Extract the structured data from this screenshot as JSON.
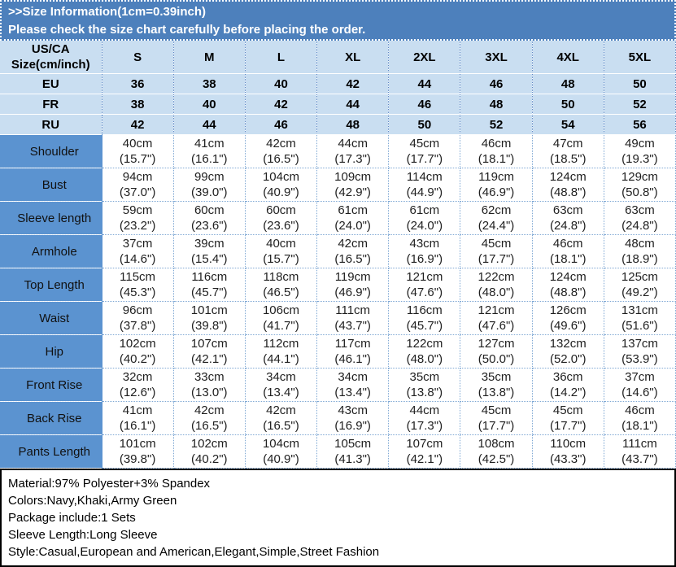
{
  "banner": {
    "title": ">>Size Information(1cm=0.39inch)",
    "subtitle": "Please check the size chart carefully before placing the order."
  },
  "colors": {
    "banner_blue": "#4d80bc",
    "light_blue_cell": "#c9def1",
    "label_column_blue": "#5b93d0",
    "dotted_border_blue": "#7fa8d4",
    "text_black": "#000000",
    "banner_text_white": "#ffffff"
  },
  "table": {
    "corner_header": "US/CA\nSize(cm/inch)",
    "size_headers": [
      "S",
      "M",
      "L",
      "XL",
      "2XL",
      "3XL",
      "4XL",
      "5XL"
    ],
    "conversion_rows": [
      {
        "label": "EU",
        "values": [
          "36",
          "38",
          "40",
          "42",
          "44",
          "46",
          "48",
          "50"
        ]
      },
      {
        "label": "FR",
        "values": [
          "38",
          "40",
          "42",
          "44",
          "46",
          "48",
          "50",
          "52"
        ]
      },
      {
        "label": "RU",
        "values": [
          "42",
          "44",
          "46",
          "48",
          "50",
          "52",
          "54",
          "56"
        ]
      }
    ],
    "measurement_rows": [
      {
        "label": "Shoulder",
        "cells": [
          "40cm\n(15.7\")",
          "41cm\n(16.1\")",
          "42cm\n(16.5\")",
          "44cm\n(17.3\")",
          "45cm\n(17.7\")",
          "46cm\n(18.1\")",
          "47cm\n(18.5\")",
          "49cm\n(19.3\")"
        ]
      },
      {
        "label": "Bust",
        "cells": [
          "94cm\n(37.0\")",
          "99cm\n(39.0\")",
          "104cm\n(40.9\")",
          "109cm\n(42.9\")",
          "114cm\n(44.9\")",
          "119cm\n(46.9\")",
          "124cm\n(48.8\")",
          "129cm\n(50.8\")"
        ]
      },
      {
        "label": "Sleeve length",
        "cells": [
          "59cm\n(23.2\")",
          "60cm\n(23.6\")",
          "60cm\n(23.6\")",
          "61cm\n(24.0\")",
          "61cm\n(24.0\")",
          "62cm\n(24.4\")",
          "63cm\n(24.8\")",
          "63cm\n(24.8\")"
        ]
      },
      {
        "label": "Armhole",
        "cells": [
          "37cm\n(14.6\")",
          "39cm\n(15.4\")",
          "40cm\n(15.7\")",
          "42cm\n(16.5\")",
          "43cm\n(16.9\")",
          "45cm\n(17.7\")",
          "46cm\n(18.1\")",
          "48cm\n(18.9\")"
        ]
      },
      {
        "label": "Top Length",
        "cells": [
          "115cm\n(45.3\")",
          "116cm\n(45.7\")",
          "118cm\n(46.5\")",
          "119cm\n(46.9\")",
          "121cm\n(47.6\")",
          "122cm\n(48.0\")",
          "124cm\n(48.8\")",
          "125cm\n(49.2\")"
        ]
      },
      {
        "label": "Waist",
        "cells": [
          "96cm\n(37.8\")",
          "101cm\n(39.8\")",
          "106cm\n(41.7\")",
          "111cm\n(43.7\")",
          "116cm\n(45.7\")",
          "121cm\n(47.6\")",
          "126cm\n(49.6\")",
          "131cm\n(51.6\")"
        ]
      },
      {
        "label": "Hip",
        "cells": [
          "102cm\n(40.2\")",
          "107cm\n(42.1\")",
          "112cm\n(44.1\")",
          "117cm\n(46.1\")",
          "122cm\n(48.0\")",
          "127cm\n(50.0\")",
          "132cm\n(52.0\")",
          "137cm\n(53.9\")"
        ]
      },
      {
        "label": "Front Rise",
        "cells": [
          "32cm\n(12.6\")",
          "33cm\n(13.0\")",
          "34cm\n(13.4\")",
          "34cm\n(13.4\")",
          "35cm\n(13.8\")",
          "35cm\n(13.8\")",
          "36cm\n(14.2\")",
          "37cm\n(14.6\")"
        ]
      },
      {
        "label": "Back Rise",
        "cells": [
          "41cm\n(16.1\")",
          "42cm\n(16.5\")",
          "42cm\n(16.5\")",
          "43cm\n(16.9\")",
          "44cm\n(17.3\")",
          "45cm\n(17.7\")",
          "45cm\n(17.7\")",
          "46cm\n(18.1\")"
        ]
      },
      {
        "label": "Pants Length",
        "cells": [
          "101cm\n(39.8\")",
          "102cm\n(40.2\")",
          "104cm\n(40.9\")",
          "105cm\n(41.3\")",
          "107cm\n(42.1\")",
          "108cm\n(42.5\")",
          "110cm\n(43.3\")",
          "111cm\n(43.7\")"
        ]
      }
    ]
  },
  "footer": {
    "lines": [
      "Material:97% Polyester+3% Spandex",
      "Colors:Navy,Khaki,Army Green",
      "Package include:1 Sets",
      "Sleeve Length:Long Sleeve",
      "Style:Casual,European and American,Elegant,Simple,Street Fashion"
    ]
  }
}
